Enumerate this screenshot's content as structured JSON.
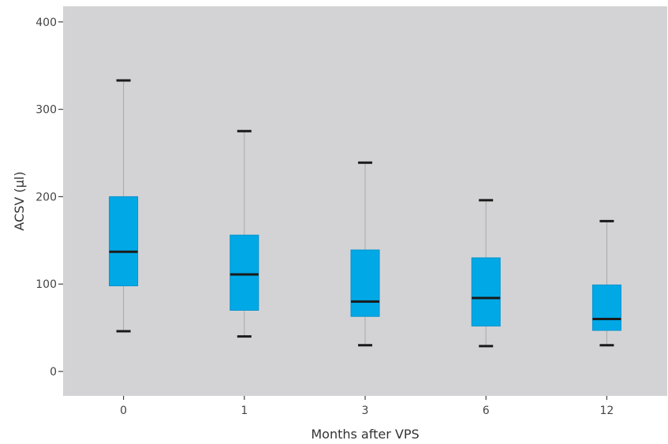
{
  "chart_data": {
    "type": "box",
    "title": "",
    "xlabel": "Months after VPS",
    "ylabel": "ACSV (µl)",
    "ylim": [
      -28,
      415
    ],
    "yticks": [
      0,
      100,
      200,
      300,
      400
    ],
    "categories": [
      "0",
      "1",
      "3",
      "6",
      "12"
    ],
    "boxes": [
      {
        "category": "0",
        "min": 46,
        "q1": 98,
        "median": 137,
        "q3": 200,
        "max": 333
      },
      {
        "category": "1",
        "min": 40,
        "q1": 70,
        "median": 111,
        "q3": 156,
        "max": 275
      },
      {
        "category": "3",
        "min": 30,
        "q1": 63,
        "median": 80,
        "q3": 139,
        "max": 239
      },
      {
        "category": "6",
        "min": 29,
        "q1": 52,
        "median": 84,
        "q3": 130,
        "max": 196
      },
      {
        "category": "12",
        "min": 30,
        "q1": 47,
        "median": 60,
        "q3": 99,
        "max": 172
      }
    ],
    "grid": false,
    "colors": {
      "panel": "#d3d3d5",
      "box_fill": "#00a8e6",
      "box_stroke": "#0092cf",
      "median": "#1a1a1a",
      "whisker": "#a9a9a9",
      "cap": "#1a1a1a"
    }
  }
}
